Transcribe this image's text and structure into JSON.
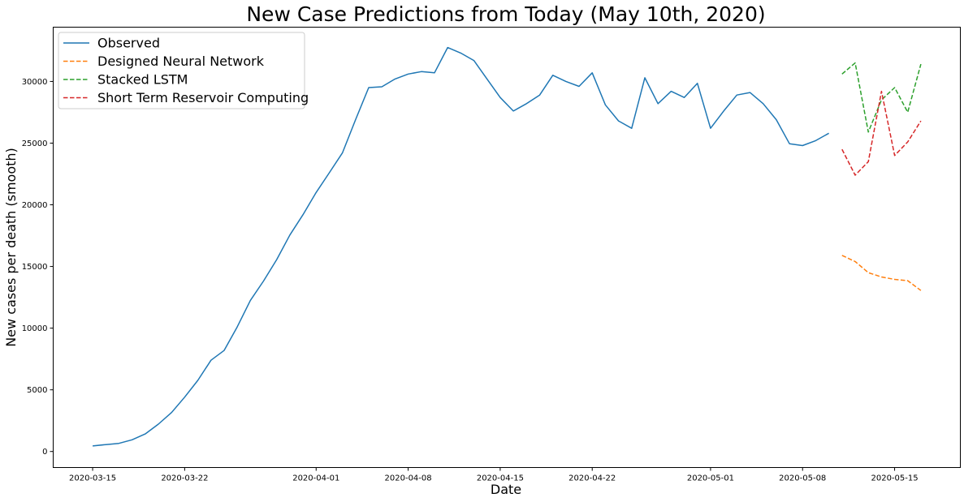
{
  "chart_data": {
    "type": "line",
    "title": "New Case Predictions from Today (May 10th, 2020)",
    "xlabel": "Date",
    "ylabel": "New cases per death (smooth)",
    "xlim": [
      "2020-03-12",
      "2020-05-20"
    ],
    "ylim": [
      -1300,
      34400
    ],
    "x_ticks": [
      "2020-03-15",
      "2020-03-22",
      "2020-04-01",
      "2020-04-08",
      "2020-04-15",
      "2020-04-22",
      "2020-05-01",
      "2020-05-08",
      "2020-05-15"
    ],
    "y_ticks": [
      0,
      5000,
      10000,
      15000,
      20000,
      25000,
      30000
    ],
    "grid": false,
    "legend_position": "top-left",
    "series": [
      {
        "name": "Observed",
        "color": "#1f77b4",
        "style": "solid",
        "x": [
          "2020-03-15",
          "2020-03-16",
          "2020-03-17",
          "2020-03-18",
          "2020-03-19",
          "2020-03-20",
          "2020-03-21",
          "2020-03-22",
          "2020-03-23",
          "2020-03-24",
          "2020-03-25",
          "2020-03-26",
          "2020-03-27",
          "2020-03-28",
          "2020-03-29",
          "2020-03-30",
          "2020-03-31",
          "2020-04-01",
          "2020-04-02",
          "2020-04-03",
          "2020-04-04",
          "2020-04-05",
          "2020-04-06",
          "2020-04-07",
          "2020-04-08",
          "2020-04-09",
          "2020-04-10",
          "2020-04-11",
          "2020-04-12",
          "2020-04-13",
          "2020-04-14",
          "2020-04-15",
          "2020-04-16",
          "2020-04-17",
          "2020-04-18",
          "2020-04-19",
          "2020-04-20",
          "2020-04-21",
          "2020-04-22",
          "2020-04-23",
          "2020-04-24",
          "2020-04-25",
          "2020-04-26",
          "2020-04-27",
          "2020-04-28",
          "2020-04-29",
          "2020-04-30",
          "2020-05-01",
          "2020-05-02",
          "2020-05-03",
          "2020-05-04",
          "2020-05-05",
          "2020-05-06",
          "2020-05-07",
          "2020-05-08",
          "2020-05-09",
          "2020-05-10"
        ],
        "y": [
          450,
          560,
          660,
          950,
          1420,
          2220,
          3160,
          4410,
          5770,
          7400,
          8190,
          10100,
          12250,
          13820,
          15560,
          17550,
          19200,
          21000,
          22600,
          24200,
          26900,
          29500,
          29570,
          30200,
          30600,
          30800,
          30700,
          32750,
          32300,
          31700,
          30200,
          28700,
          27600,
          28200,
          28900,
          30500,
          30000,
          29600,
          30700,
          28100,
          26800,
          26200,
          30300,
          28200,
          29200,
          28700,
          29850,
          26200,
          27600,
          28900,
          29100,
          28200,
          26900,
          24950,
          24800,
          25200,
          25800
        ]
      },
      {
        "name": "Designed Neural Network",
        "color": "#ff7f0e",
        "style": "dashed",
        "x": [
          "2020-05-11",
          "2020-05-12",
          "2020-05-13",
          "2020-05-14",
          "2020-05-15",
          "2020-05-16",
          "2020-05-17"
        ],
        "y": [
          15900,
          15400,
          14500,
          14150,
          13950,
          13850,
          13050
        ]
      },
      {
        "name": "Stacked LSTM",
        "color": "#2ca02c",
        "style": "dashed",
        "x": [
          "2020-05-11",
          "2020-05-12",
          "2020-05-13",
          "2020-05-14",
          "2020-05-15",
          "2020-05-16",
          "2020-05-17"
        ],
        "y": [
          30600,
          31500,
          25900,
          28500,
          29500,
          27500,
          31400
        ]
      },
      {
        "name": "Short Term Reservoir Computing",
        "color": "#d62728",
        "style": "dashed",
        "x": [
          "2020-05-11",
          "2020-05-12",
          "2020-05-13",
          "2020-05-14",
          "2020-05-15",
          "2020-05-16",
          "2020-05-17"
        ],
        "y": [
          24500,
          22400,
          23500,
          29200,
          24000,
          25100,
          26800
        ]
      }
    ]
  }
}
